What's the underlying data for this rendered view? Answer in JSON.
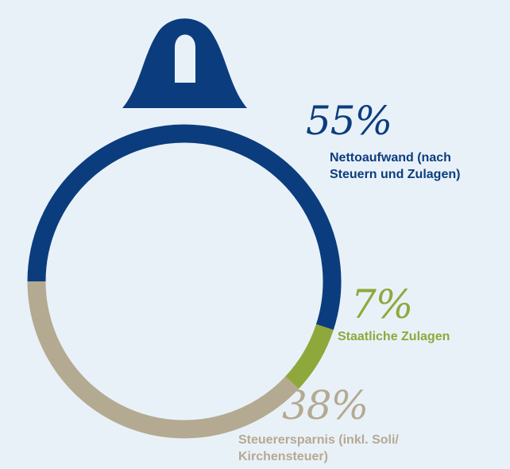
{
  "colors": {
    "background": "#e9f1f8",
    "nettoaufwand": "#0b3d7e",
    "zulagen": "#8fa83b",
    "steuerersparnis": "#b4aa91",
    "ring_inner": "#e9f1f8"
  },
  "icon": "bell-ornament-icon",
  "chart_data": {
    "type": "pie",
    "style": "ring",
    "slices": [
      {
        "value": 55,
        "label": "55%",
        "name": "Nettoaufwand (nach Steuern und Zulagen)",
        "color": "#0b3d7e"
      },
      {
        "value": 7,
        "label": "7%",
        "name": "Staatliche Zulagen",
        "color": "#8fa83b"
      },
      {
        "value": 38,
        "label": "38%",
        "name": "Steuerersparnis (inkl. Soli/ Kirchensteuer)",
        "color": "#b4aa91"
      }
    ],
    "labels": {
      "nettoaufwand": {
        "pct": "55%",
        "line1": "Nettoaufwand (nach",
        "line2": "Steuern und Zulagen)"
      },
      "zulagen": {
        "pct": "7%",
        "line1": "Staatliche Zulagen"
      },
      "steuerersparnis": {
        "pct": "38%",
        "line1": "Steuerersparnis (inkl. Soli/",
        "line2": "Kirchensteuer)"
      }
    }
  }
}
